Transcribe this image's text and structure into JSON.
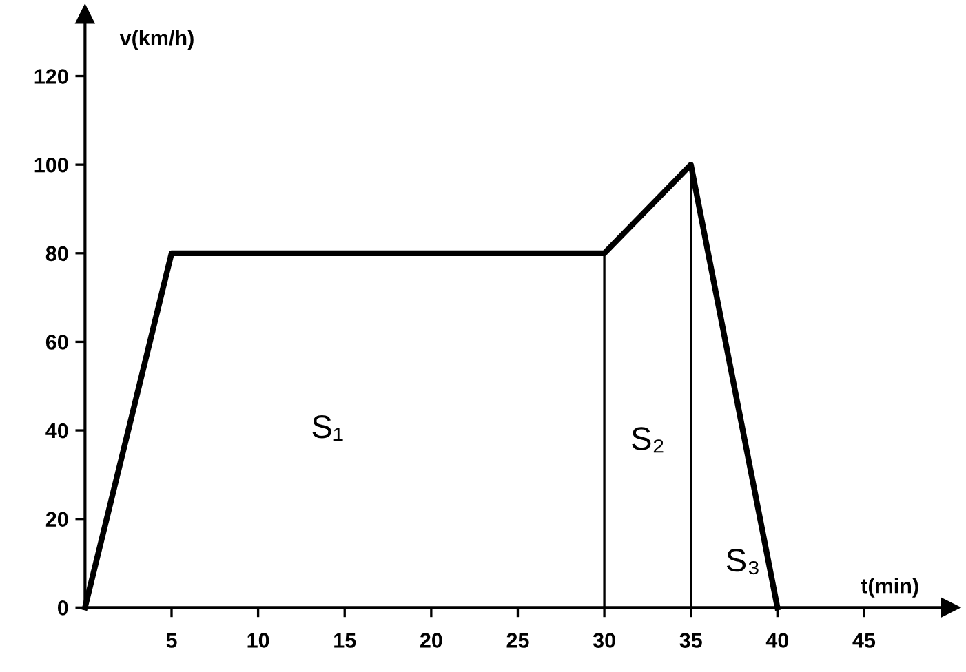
{
  "chart_data": {
    "type": "line",
    "xlabel": "t(min)",
    "ylabel": "v(km/h)",
    "x": [
      0,
      5,
      30,
      35,
      40
    ],
    "series": [
      {
        "color": "#000000",
        "values": [
          0,
          80,
          80,
          100,
          0
        ]
      }
    ],
    "xlim": [
      0,
      50
    ],
    "xticks": [
      5,
      10,
      15,
      20,
      25,
      30,
      35,
      40,
      45
    ],
    "ylim": [
      0,
      134
    ],
    "yticks": [
      0,
      20,
      40,
      60,
      80,
      100,
      120
    ],
    "ref_lines": [
      {
        "axis": "x",
        "value": 30,
        "color": "#000000"
      },
      {
        "axis": "x",
        "value": 35,
        "color": "#000000"
      }
    ],
    "annotations": [
      "S₁",
      "S₂",
      "S₃"
    ],
    "grid": false,
    "legend": false,
    "marker": "none",
    "line_style": "solid"
  }
}
